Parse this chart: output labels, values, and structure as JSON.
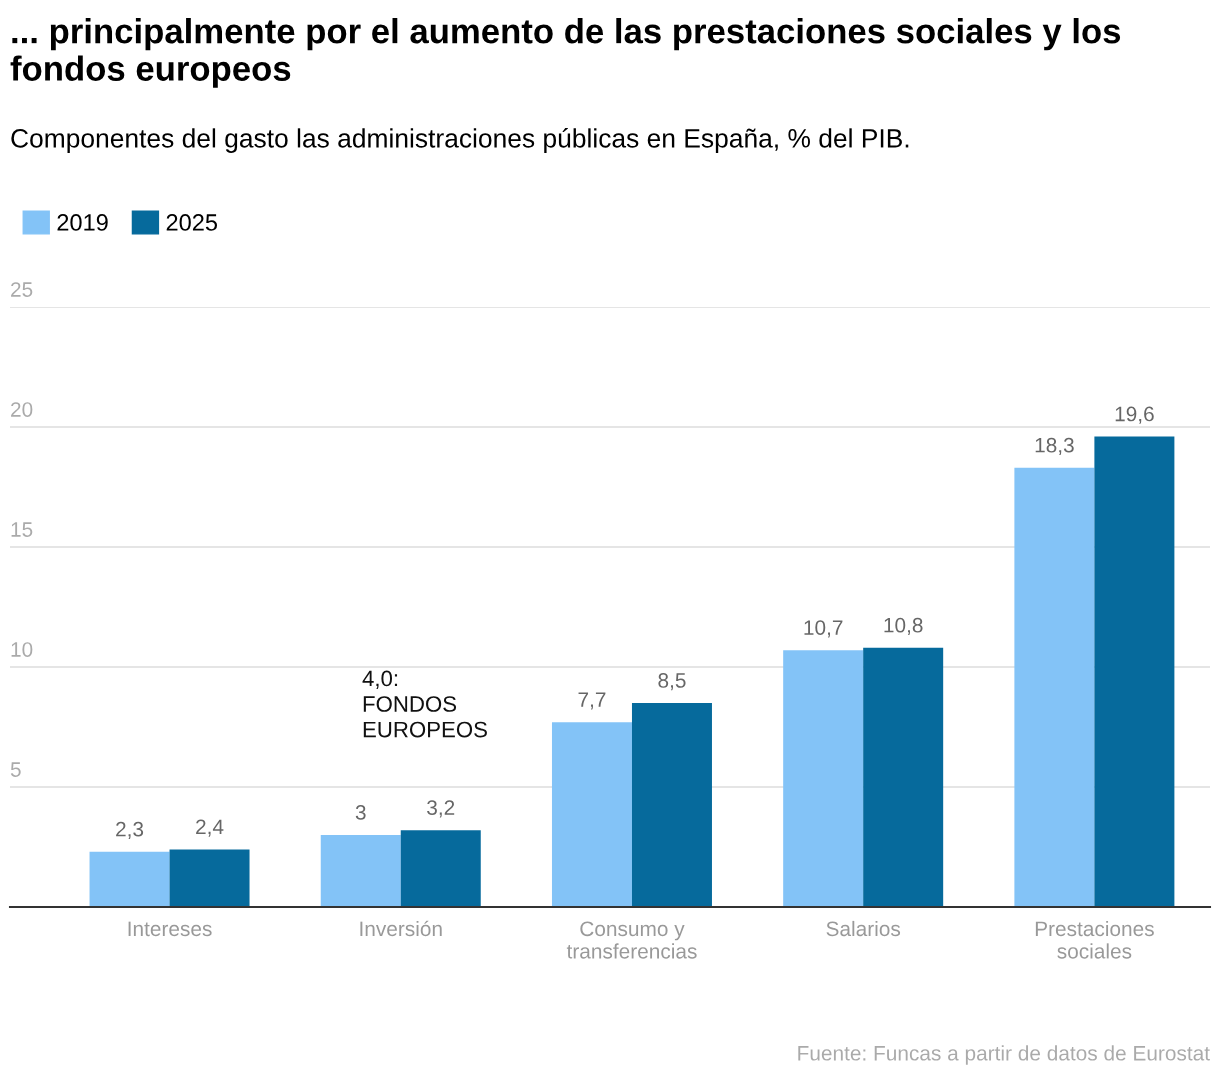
{
  "chart_data": {
    "type": "bar",
    "title": "... principalmente por el aumento de las prestaciones sociales y los fondos europeos",
    "subtitle": "Componentes del gasto las administraciones públicas en España, % del PIB.",
    "categories": [
      "Intereses",
      "Inversión",
      "Consumo y\ntransferencias",
      "Salarios",
      "Prestaciones\nsociales"
    ],
    "series": [
      {
        "name": "2019",
        "color": "#83c3f7",
        "values": [
          2.3,
          3,
          7.7,
          10.7,
          18.3
        ],
        "value_labels": [
          "2,3",
          "3",
          "7,7",
          "10,7",
          "18,3"
        ]
      },
      {
        "name": "2025",
        "color": "#066a9c",
        "values": [
          2.4,
          3.2,
          8.5,
          10.8,
          19.6
        ],
        "value_labels": [
          "2,4",
          "3,2",
          "8,5",
          "10,8",
          "19,6"
        ]
      }
    ],
    "ylim": [
      0,
      25
    ],
    "yticks": [
      {
        "value": 0,
        "label": null
      },
      5,
      10,
      15,
      20,
      25
    ],
    "grid": "y",
    "legend": "top left",
    "annotations": [
      "4,0:\nFONDOS\nEUROPEOS",
      "Fuente: Funcas a partir de datos de Eurostat"
    ]
  }
}
